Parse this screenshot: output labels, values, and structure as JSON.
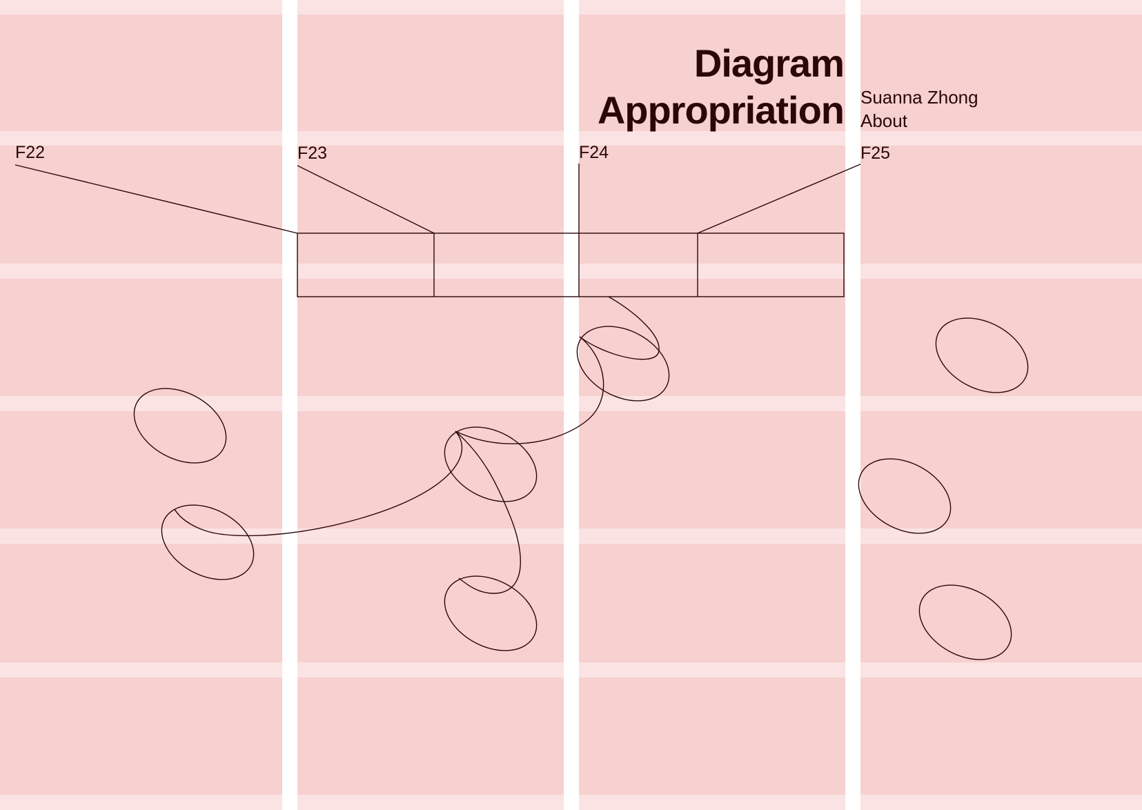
{
  "header": {
    "title_line1": "Diagram",
    "title_line2": "Appropriation"
  },
  "nav": {
    "author": "Suanna Zhong",
    "about": "About"
  },
  "terms": [
    {
      "label": "F22"
    },
    {
      "label": "F23"
    },
    {
      "label": "F24"
    },
    {
      "label": "F25"
    }
  ],
  "colors": {
    "page_background": "#ffffff",
    "cell_fill": "#f7d0d0",
    "gutter_light": "#fbe3e3",
    "ink": "#2a0708"
  }
}
